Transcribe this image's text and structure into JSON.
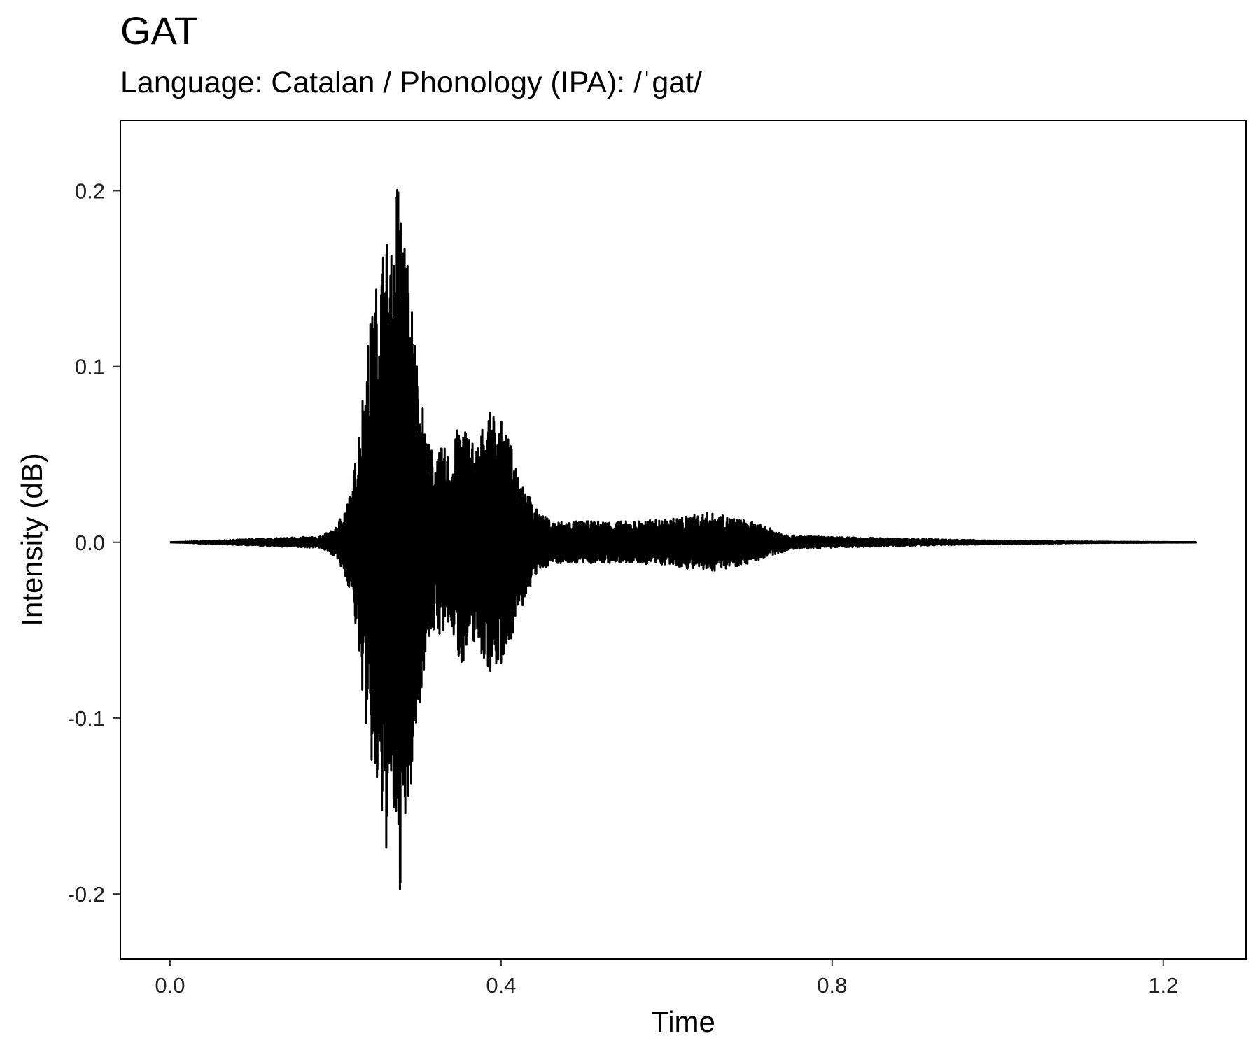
{
  "chart_data": {
    "type": "line",
    "title": "GAT",
    "subtitle": "Language: Catalan / Phonology (IPA): /ˈgat/",
    "xlabel": "Time",
    "ylabel": "Intensity (dB)",
    "xlim": [
      -0.06,
      1.3
    ],
    "ylim": [
      -0.237,
      0.24
    ],
    "xticks": [
      {
        "value": 0.0,
        "label": "0.0"
      },
      {
        "value": 0.4,
        "label": "0.4"
      },
      {
        "value": 0.8,
        "label": "0.8"
      },
      {
        "value": 1.2,
        "label": "1.2"
      }
    ],
    "yticks": [
      {
        "value": 0.2,
        "label": "0.2"
      },
      {
        "value": 0.1,
        "label": "0.1"
      },
      {
        "value": 0.0,
        "label": "0.0"
      },
      {
        "value": -0.1,
        "label": "-0.1"
      },
      {
        "value": -0.2,
        "label": "-0.2"
      }
    ],
    "grid": false,
    "line_color": "#000000",
    "series": [
      {
        "x": [
          0.0,
          0.16,
          0.18,
          0.2,
          0.22,
          0.24,
          0.25,
          0.26,
          0.27,
          0.275,
          0.28,
          0.29,
          0.3,
          0.31,
          0.32,
          0.33,
          0.34,
          0.35,
          0.36,
          0.37,
          0.38,
          0.39,
          0.4,
          0.42,
          0.44,
          0.46,
          0.48,
          0.5,
          0.55,
          0.6,
          0.65,
          0.66,
          0.7,
          0.75,
          0.8,
          0.85,
          0.9,
          0.95,
          1.0,
          1.05,
          1.1,
          1.15,
          1.2,
          1.24
        ],
        "envelope": [
          0.0,
          0.003,
          0.003,
          0.008,
          0.03,
          0.12,
          0.15,
          0.18,
          0.16,
          0.218,
          0.19,
          0.15,
          0.1,
          0.06,
          0.05,
          0.055,
          0.05,
          0.07,
          0.065,
          0.055,
          0.07,
          0.075,
          0.07,
          0.045,
          0.02,
          0.012,
          0.012,
          0.012,
          0.012,
          0.013,
          0.017,
          0.016,
          0.012,
          0.004,
          0.003,
          0.0025,
          0.002,
          0.0015,
          0.001,
          0.0008,
          0.0005,
          0.0003,
          0.0002,
          0.0001
        ]
      }
    ]
  }
}
